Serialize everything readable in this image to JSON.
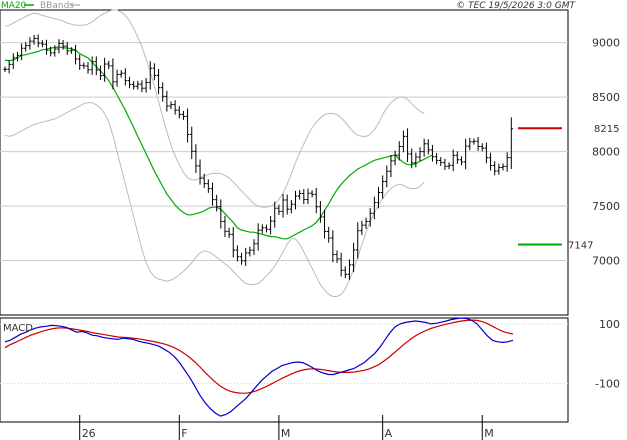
{
  "header": {
    "legend_ma": "MA20",
    "legend_bb": "BBands",
    "watermark": "© TEC 19/5/2026 3:0 GMT"
  },
  "colors": {
    "bars": "#000000",
    "ma": "#00aa00",
    "bbands": "#bbbbbb",
    "grid": "#cccccc",
    "resistance": "#cc0000",
    "support": "#00aa00",
    "macd": "#0000cc",
    "signal": "#cc0000"
  },
  "chart_data": [
    {
      "type": "ohlc",
      "title": "",
      "ylim": [
        6500,
        9300
      ],
      "y_ticks": [
        7000,
        7500,
        8000,
        8500,
        9000
      ],
      "y_tick_labels": [
        "7000",
        "7500",
        "8000",
        "8500",
        "9000"
      ],
      "x_labels": [
        {
          "label": "26",
          "index": 18
        },
        {
          "label": "F",
          "index": 42
        },
        {
          "label": "M",
          "index": 66
        },
        {
          "label": "A",
          "index": 91
        },
        {
          "label": "M",
          "index": 115
        }
      ],
      "series_close": [
        8756,
        8801,
        8861,
        8884,
        8949,
        8973,
        9014,
        9039,
        8996,
        8986,
        8932,
        8907,
        8942,
        8992,
        8968,
        8925,
        8931,
        8850,
        8792,
        8786,
        8751,
        8826,
        8749,
        8698,
        8804,
        8787,
        8641,
        8708,
        8720,
        8652,
        8617,
        8600,
        8619,
        8582,
        8635,
        8766,
        8700,
        8587,
        8507,
        8419,
        8432,
        8381,
        8342,
        8322,
        8158,
        8003,
        7869,
        7756,
        7706,
        7660,
        7559,
        7495,
        7359,
        7268,
        7240,
        7096,
        7035,
        6998,
        7070,
        7095,
        7154,
        7279,
        7301,
        7287,
        7362,
        7480,
        7451,
        7556,
        7472,
        7517,
        7592,
        7616,
        7560,
        7618,
        7608,
        7494,
        7400,
        7267,
        7207,
        7055,
        7015,
        6911,
        6874,
        6960,
        7097,
        7274,
        7325,
        7359,
        7434,
        7532,
        7624,
        7726,
        7820,
        7915,
        7968,
        8047,
        8140,
        7979,
        7897,
        7950,
        8000,
        8072,
        8016,
        7953,
        7919,
        7899,
        7866,
        7874,
        7966,
        7925,
        7906,
        8050,
        8090,
        8095,
        8047,
        8032,
        7944,
        7872,
        7822,
        7854,
        7864,
        7945,
        8210
      ],
      "series_ma20": [
        8840,
        8835,
        8842,
        8860,
        8883,
        8890,
        8900,
        8910,
        8920,
        8935,
        8940,
        8950,
        8956,
        8960,
        8955,
        8950,
        8945,
        8930,
        8900,
        8880,
        8860,
        8820,
        8780,
        8740,
        8700,
        8650,
        8590,
        8520,
        8450,
        8380,
        8300,
        8220,
        8140,
        8060,
        7980,
        7900,
        7820,
        7750,
        7680,
        7610,
        7560,
        7510,
        7470,
        7440,
        7420,
        7420,
        7430,
        7440,
        7455,
        7480,
        7490,
        7490,
        7470,
        7430,
        7390,
        7350,
        7300,
        7280,
        7270,
        7260,
        7260,
        7250,
        7240,
        7230,
        7220,
        7220,
        7210,
        7200,
        7200,
        7220,
        7240,
        7260,
        7280,
        7300,
        7320,
        7350,
        7400,
        7460,
        7520,
        7590,
        7650,
        7700,
        7740,
        7780,
        7810,
        7840,
        7860,
        7880,
        7900,
        7920,
        7930,
        7940,
        7950,
        7960,
        7970,
        7930,
        7900,
        7880,
        7880,
        7890,
        7910,
        7930,
        7950,
        7970
      ],
      "series_bb_upper": [
        9150,
        9160,
        9180,
        9200,
        9220,
        9240,
        9260,
        9270,
        9265,
        9250,
        9240,
        9230,
        9220,
        9210,
        9200,
        9180,
        9170,
        9160,
        9160,
        9160,
        9170,
        9190,
        9220,
        9250,
        9270,
        9290,
        9300,
        9300,
        9280,
        9250,
        9200,
        9130,
        9050,
        8960,
        8850,
        8730,
        8600,
        8460,
        8320,
        8180,
        8060,
        7960,
        7880,
        7810,
        7760,
        7740,
        7740,
        7760,
        7780,
        7790,
        7800,
        7800,
        7800,
        7780,
        7760,
        7720,
        7680,
        7640,
        7600,
        7560,
        7520,
        7500,
        7490,
        7490,
        7500,
        7520,
        7560,
        7620,
        7700,
        7800,
        7900,
        7990,
        8070,
        8150,
        8220,
        8270,
        8310,
        8340,
        8350,
        8350,
        8340,
        8310,
        8270,
        8220,
        8180,
        8150,
        8140,
        8140,
        8160,
        8200,
        8260,
        8340,
        8400,
        8450,
        8480,
        8500,
        8500,
        8480,
        8440,
        8400,
        8370,
        8350
      ],
      "series_bb_lower": [
        8150,
        8140,
        8150,
        8170,
        8190,
        8210,
        8230,
        8250,
        8260,
        8270,
        8280,
        8290,
        8300,
        8320,
        8340,
        8360,
        8380,
        8400,
        8420,
        8440,
        8450,
        8450,
        8430,
        8400,
        8350,
        8270,
        8150,
        8000,
        7850,
        7700,
        7550,
        7400,
        7250,
        7100,
        6980,
        6900,
        6850,
        6830,
        6820,
        6810,
        6820,
        6840,
        6870,
        6900,
        6940,
        6980,
        7030,
        7070,
        7090,
        7080,
        7060,
        7030,
        7000,
        6970,
        6940,
        6900,
        6860,
        6820,
        6790,
        6780,
        6780,
        6790,
        6820,
        6860,
        6900,
        6950,
        7010,
        7080,
        7150,
        7200,
        7200,
        7150,
        7080,
        7000,
        6930,
        6850,
        6780,
        6730,
        6690,
        6670,
        6670,
        6690,
        6740,
        6820,
        6920,
        7030,
        7150,
        7260,
        7360,
        7440,
        7510,
        7570,
        7620,
        7660,
        7690,
        7700,
        7690,
        7670,
        7660,
        7660,
        7680,
        7720
      ],
      "resistance": {
        "value": 8215,
        "label": "8215"
      },
      "support": {
        "value": 7147,
        "label": "7147"
      }
    },
    {
      "type": "line",
      "title": "MACD",
      "ylim": [
        -230,
        120
      ],
      "y_ticks": [
        100,
        -100
      ],
      "y_tick_labels": [
        "100",
        "-100"
      ],
      "series": [
        {
          "values": [
            40,
            45,
            55,
            65,
            72,
            80,
            86,
            90,
            92,
            95,
            94,
            92,
            88,
            80,
            72,
            75,
            70,
            62,
            60,
            55,
            52,
            50,
            48,
            52,
            50,
            48,
            42,
            38,
            35,
            30,
            25,
            15,
            5,
            -10,
            -30,
            -55,
            -80,
            -110,
            -140,
            -165,
            -185,
            -200,
            -210,
            -205,
            -195,
            -180,
            -165,
            -150,
            -130,
            -110,
            -90,
            -75,
            -60,
            -50,
            -40,
            -35,
            -30,
            -28,
            -30,
            -38,
            -48,
            -58,
            -65,
            -70,
            -70,
            -65,
            -60,
            -55,
            -50,
            -40,
            -30,
            -15,
            0,
            20,
            45,
            70,
            90,
            100,
            105,
            108,
            110,
            108,
            105,
            100,
            102,
            106,
            110,
            115,
            118,
            120,
            118,
            112,
            100,
            80,
            60,
            45,
            40,
            38,
            40,
            45
          ]
        },
        {
          "values": [
            20,
            30,
            38,
            46,
            54,
            62,
            68,
            74,
            79,
            83,
            86,
            87,
            86,
            84,
            81,
            78,
            75,
            71,
            68,
            65,
            62,
            59,
            56,
            55,
            54,
            52,
            50,
            47,
            44,
            41,
            37,
            33,
            27,
            20,
            11,
            0,
            -13,
            -28,
            -45,
            -63,
            -80,
            -96,
            -110,
            -120,
            -127,
            -131,
            -133,
            -133,
            -130,
            -125,
            -118,
            -110,
            -101,
            -92,
            -83,
            -75,
            -67,
            -60,
            -55,
            -52,
            -51,
            -52,
            -54,
            -57,
            -60,
            -62,
            -63,
            -63,
            -62,
            -59,
            -56,
            -51,
            -44,
            -35,
            -23,
            -10,
            5,
            20,
            35,
            48,
            60,
            70,
            78,
            85,
            90,
            95,
            99,
            103,
            107,
            110,
            112,
            113,
            112,
            108,
            101,
            92,
            83,
            75,
            70,
            66
          ]
        }
      ]
    }
  ]
}
